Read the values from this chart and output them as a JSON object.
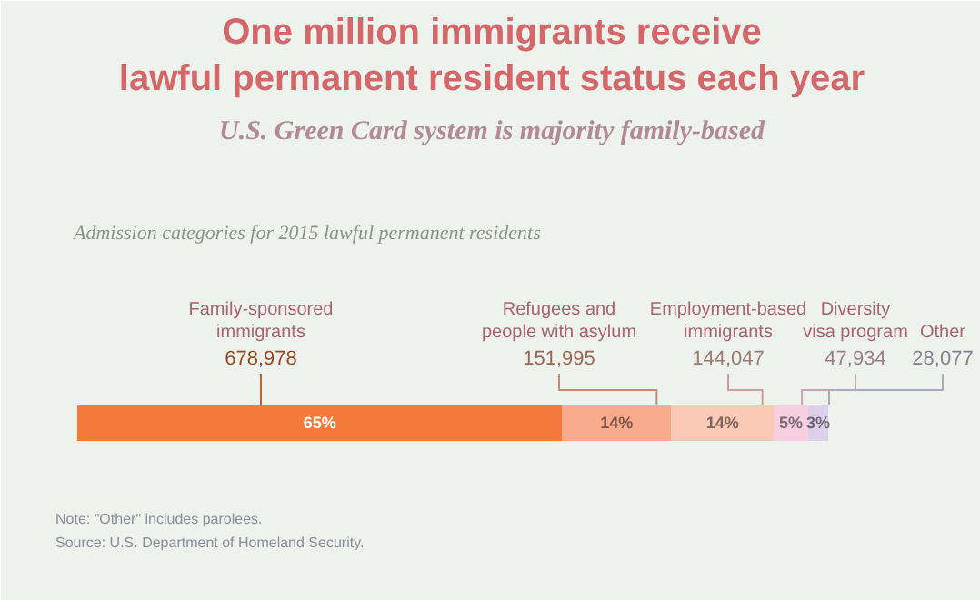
{
  "chart_data": {
    "type": "bar",
    "orientation": "horizontal",
    "stacked": true,
    "title": "One million immigrants receive\nlawful permanent resident status each year",
    "subtitle": "U.S. Green Card system is majority family-based",
    "annotations": [
      "Admission categories for 2015 lawful permanent residents",
      "Note: \"Other\" includes parolees.",
      "Source: U.S. Department of Homeland Security.",
      "Family-sponsored\nimmigrants",
      "Refugees and\npeople with asylum",
      "Employment-based\nimmigrants",
      "Diversity\nvisa program",
      "Other",
      "65%",
      "14%",
      "14%",
      "5%",
      "3%"
    ],
    "categories": [
      null
    ],
    "series": [
      {
        "color": "#f37a3a",
        "values": [
          678978
        ],
        "value_labels": [
          "678,978"
        ]
      },
      {
        "color": "#f8aa8c",
        "values": [
          151995
        ],
        "value_labels": [
          "151,995"
        ]
      },
      {
        "color": "#fac9b6",
        "values": [
          144047
        ],
        "value_labels": [
          "144,047"
        ]
      },
      {
        "color": "#f6cfe0",
        "values": [
          47934
        ],
        "value_labels": [
          "47,934"
        ]
      },
      {
        "color": "#ddd0ea",
        "values": [
          28077
        ],
        "value_labels": [
          "28,077"
        ]
      }
    ],
    "legend": false
  }
}
